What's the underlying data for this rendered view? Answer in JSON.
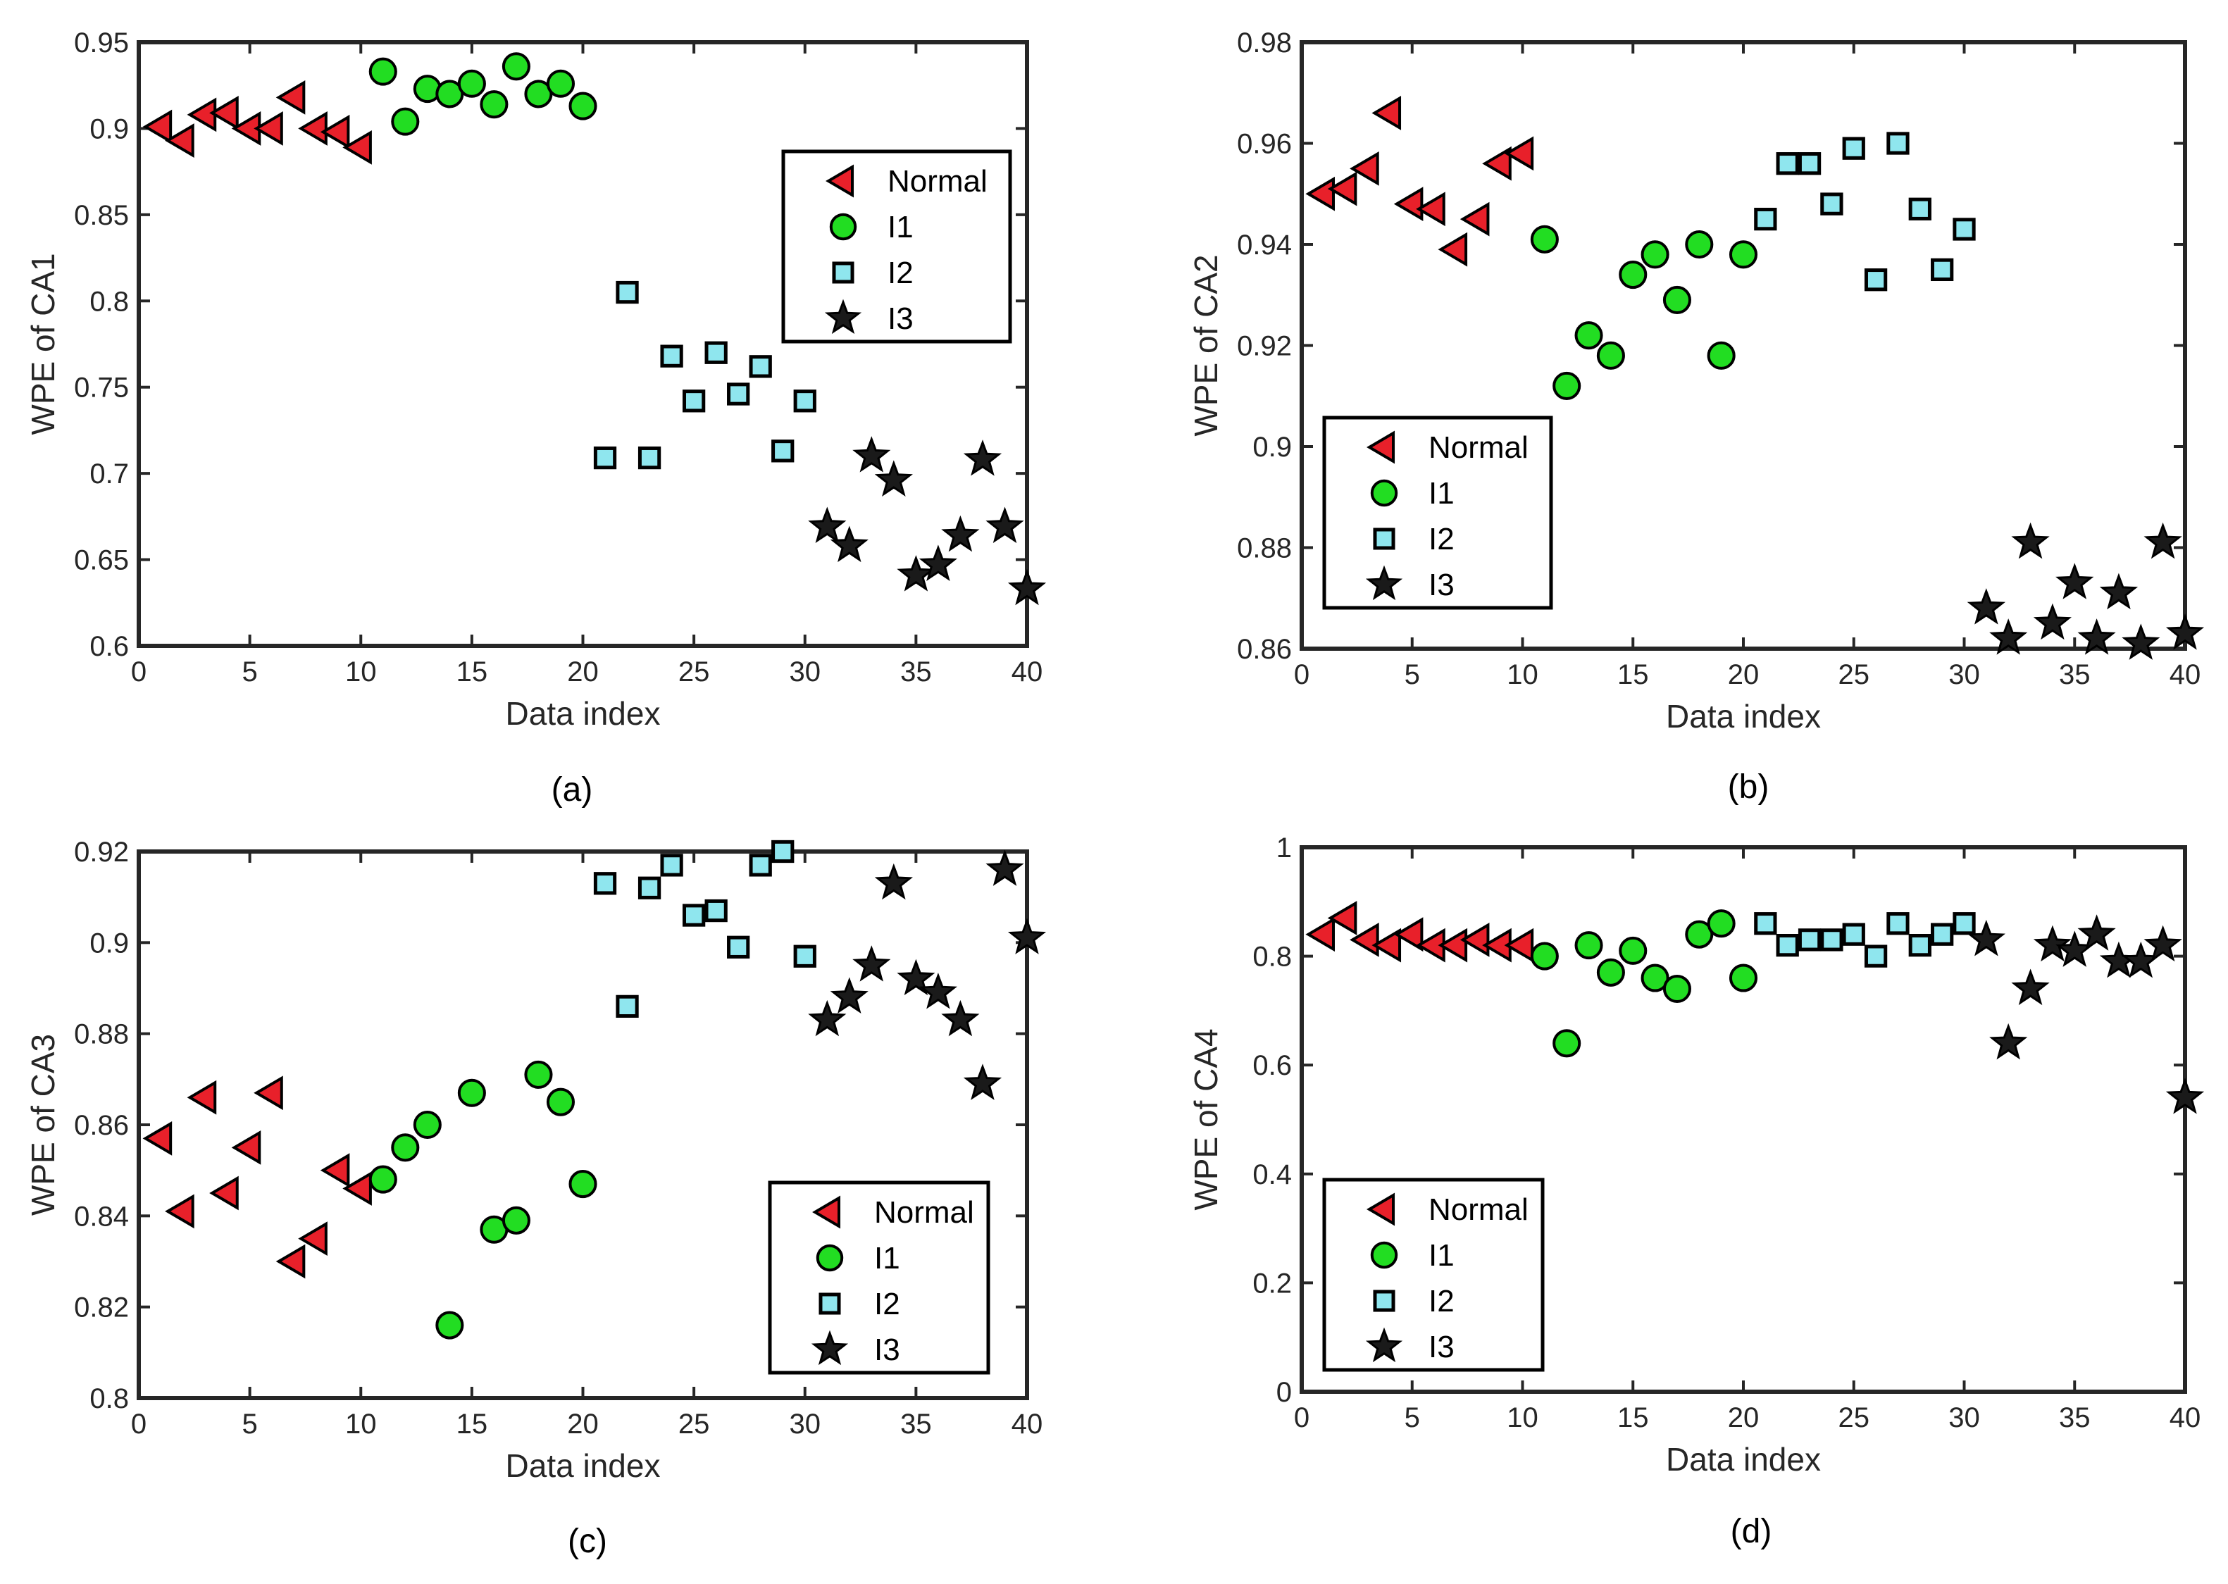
{
  "legend_labels": [
    "Normal",
    "I1",
    "I2",
    "I3"
  ],
  "colors": {
    "normal": "#e8202a",
    "i1": "#22dd22",
    "i2": "#8fe6ee",
    "i3": "#1a1a1a",
    "outline": "#000000"
  },
  "chart_data": [
    {
      "type": "scatter",
      "caption": "(a)",
      "xlabel": "Data index",
      "ylabel": "WPE of CA1",
      "xlim": [
        0,
        40
      ],
      "ylim": [
        0.6,
        0.95
      ],
      "xticks": [
        "0",
        "5",
        "10",
        "15",
        "20",
        "25",
        "30",
        "35",
        "40"
      ],
      "yticks": [
        "0.6",
        "0.65",
        "0.7",
        "0.75",
        "0.8",
        "0.85",
        "0.9",
        "0.95"
      ],
      "legend_position": "upper-right",
      "series": [
        {
          "name": "Normal",
          "x": [
            1,
            2,
            3,
            4,
            5,
            6,
            7,
            8,
            9,
            10
          ],
          "y": [
            0.901,
            0.893,
            0.908,
            0.909,
            0.9,
            0.9,
            0.918,
            0.9,
            0.898,
            0.889
          ]
        },
        {
          "name": "I1",
          "x": [
            11,
            12,
            13,
            14,
            15,
            16,
            17,
            18,
            19,
            20
          ],
          "y": [
            0.933,
            0.904,
            0.923,
            0.92,
            0.926,
            0.914,
            0.936,
            0.92,
            0.926,
            0.913
          ]
        },
        {
          "name": "I2",
          "x": [
            21,
            22,
            23,
            24,
            25,
            26,
            27,
            28,
            29,
            30
          ],
          "y": [
            0.709,
            0.805,
            0.709,
            0.768,
            0.742,
            0.77,
            0.746,
            0.762,
            0.713,
            0.742
          ]
        },
        {
          "name": "I3",
          "x": [
            31,
            32,
            33,
            34,
            35,
            36,
            37,
            38,
            39,
            40
          ],
          "y": [
            0.669,
            0.658,
            0.71,
            0.696,
            0.641,
            0.647,
            0.664,
            0.708,
            0.669,
            0.633
          ]
        }
      ]
    },
    {
      "type": "scatter",
      "caption": "(b)",
      "xlabel": "Data index",
      "ylabel": "WPE of CA2",
      "xlim": [
        0,
        40
      ],
      "ylim": [
        0.86,
        0.98
      ],
      "xticks": [
        "0",
        "5",
        "10",
        "15",
        "20",
        "25",
        "30",
        "35",
        "40"
      ],
      "yticks": [
        "0.86",
        "0.88",
        "0.9",
        "0.92",
        "0.94",
        "0.96",
        "0.98"
      ],
      "legend_position": "lower-left",
      "series": [
        {
          "name": "Normal",
          "x": [
            1,
            2,
            3,
            4,
            5,
            6,
            7,
            8,
            9,
            10
          ],
          "y": [
            0.95,
            0.951,
            0.955,
            0.966,
            0.948,
            0.947,
            0.939,
            0.945,
            0.956,
            0.958
          ]
        },
        {
          "name": "I1",
          "x": [
            11,
            12,
            13,
            14,
            15,
            16,
            17,
            18,
            19,
            20
          ],
          "y": [
            0.941,
            0.912,
            0.922,
            0.918,
            0.934,
            0.938,
            0.929,
            0.94,
            0.918,
            0.938
          ]
        },
        {
          "name": "I2",
          "x": [
            21,
            22,
            23,
            24,
            25,
            26,
            27,
            28,
            29,
            30
          ],
          "y": [
            0.945,
            0.956,
            0.956,
            0.948,
            0.959,
            0.933,
            0.96,
            0.947,
            0.935,
            0.943
          ]
        },
        {
          "name": "I3",
          "x": [
            31,
            32,
            33,
            34,
            35,
            36,
            37,
            38,
            39,
            40
          ],
          "y": [
            0.868,
            0.862,
            0.881,
            0.865,
            0.873,
            0.862,
            0.871,
            0.861,
            0.881,
            0.863
          ]
        }
      ]
    },
    {
      "type": "scatter",
      "caption": "(c)",
      "xlabel": "Data index",
      "ylabel": "WPE of CA3",
      "xlim": [
        0,
        40
      ],
      "ylim": [
        0.8,
        0.92
      ],
      "xticks": [
        "0",
        "5",
        "10",
        "15",
        "20",
        "25",
        "30",
        "35",
        "40"
      ],
      "yticks": [
        "0.8",
        "0.82",
        "0.84",
        "0.86",
        "0.88",
        "0.9",
        "0.92"
      ],
      "legend_position": "lower-right",
      "series": [
        {
          "name": "Normal",
          "x": [
            1,
            2,
            3,
            4,
            5,
            6,
            7,
            8,
            9,
            10
          ],
          "y": [
            0.857,
            0.841,
            0.866,
            0.845,
            0.855,
            0.867,
            0.83,
            0.835,
            0.85,
            0.846
          ]
        },
        {
          "name": "I1",
          "x": [
            11,
            12,
            13,
            14,
            15,
            16,
            17,
            18,
            19,
            20
          ],
          "y": [
            0.848,
            0.855,
            0.86,
            0.816,
            0.867,
            0.837,
            0.839,
            0.871,
            0.865,
            0.847
          ]
        },
        {
          "name": "I2",
          "x": [
            21,
            22,
            23,
            24,
            25,
            26,
            27,
            28,
            29,
            30
          ],
          "y": [
            0.913,
            0.886,
            0.912,
            0.917,
            0.906,
            0.907,
            0.899,
            0.917,
            0.92,
            0.897
          ]
        },
        {
          "name": "I3",
          "x": [
            31,
            32,
            33,
            34,
            35,
            36,
            37,
            38,
            39,
            40
          ],
          "y": [
            0.883,
            0.888,
            0.895,
            0.913,
            0.892,
            0.889,
            0.883,
            0.869,
            0.916,
            0.901
          ]
        }
      ]
    },
    {
      "type": "scatter",
      "caption": "(d)",
      "xlabel": "Data index",
      "ylabel": "WPE of CA4",
      "xlim": [
        0,
        40
      ],
      "ylim": [
        0,
        1
      ],
      "xticks": [
        "0",
        "5",
        "10",
        "15",
        "20",
        "25",
        "30",
        "35",
        "40"
      ],
      "yticks": [
        "0",
        "0.2",
        "0.4",
        "0.6",
        "0.8",
        "1"
      ],
      "legend_position": "lower-left",
      "series": [
        {
          "name": "Normal",
          "x": [
            1,
            2,
            3,
            4,
            5,
            6,
            7,
            8,
            9,
            10
          ],
          "y": [
            0.84,
            0.87,
            0.83,
            0.82,
            0.84,
            0.82,
            0.82,
            0.83,
            0.82,
            0.82
          ]
        },
        {
          "name": "I1",
          "x": [
            11,
            12,
            13,
            14,
            15,
            16,
            17,
            18,
            19,
            20
          ],
          "y": [
            0.8,
            0.64,
            0.82,
            0.77,
            0.81,
            0.76,
            0.74,
            0.84,
            0.86,
            0.76
          ]
        },
        {
          "name": "I2",
          "x": [
            21,
            22,
            23,
            24,
            25,
            26,
            27,
            28,
            29,
            30
          ],
          "y": [
            0.86,
            0.82,
            0.83,
            0.83,
            0.84,
            0.8,
            0.86,
            0.82,
            0.84,
            0.86
          ]
        },
        {
          "name": "I3",
          "x": [
            31,
            32,
            33,
            34,
            35,
            36,
            37,
            38,
            39,
            40
          ],
          "y": [
            0.83,
            0.64,
            0.74,
            0.82,
            0.81,
            0.84,
            0.79,
            0.79,
            0.82,
            0.54
          ]
        }
      ]
    }
  ]
}
